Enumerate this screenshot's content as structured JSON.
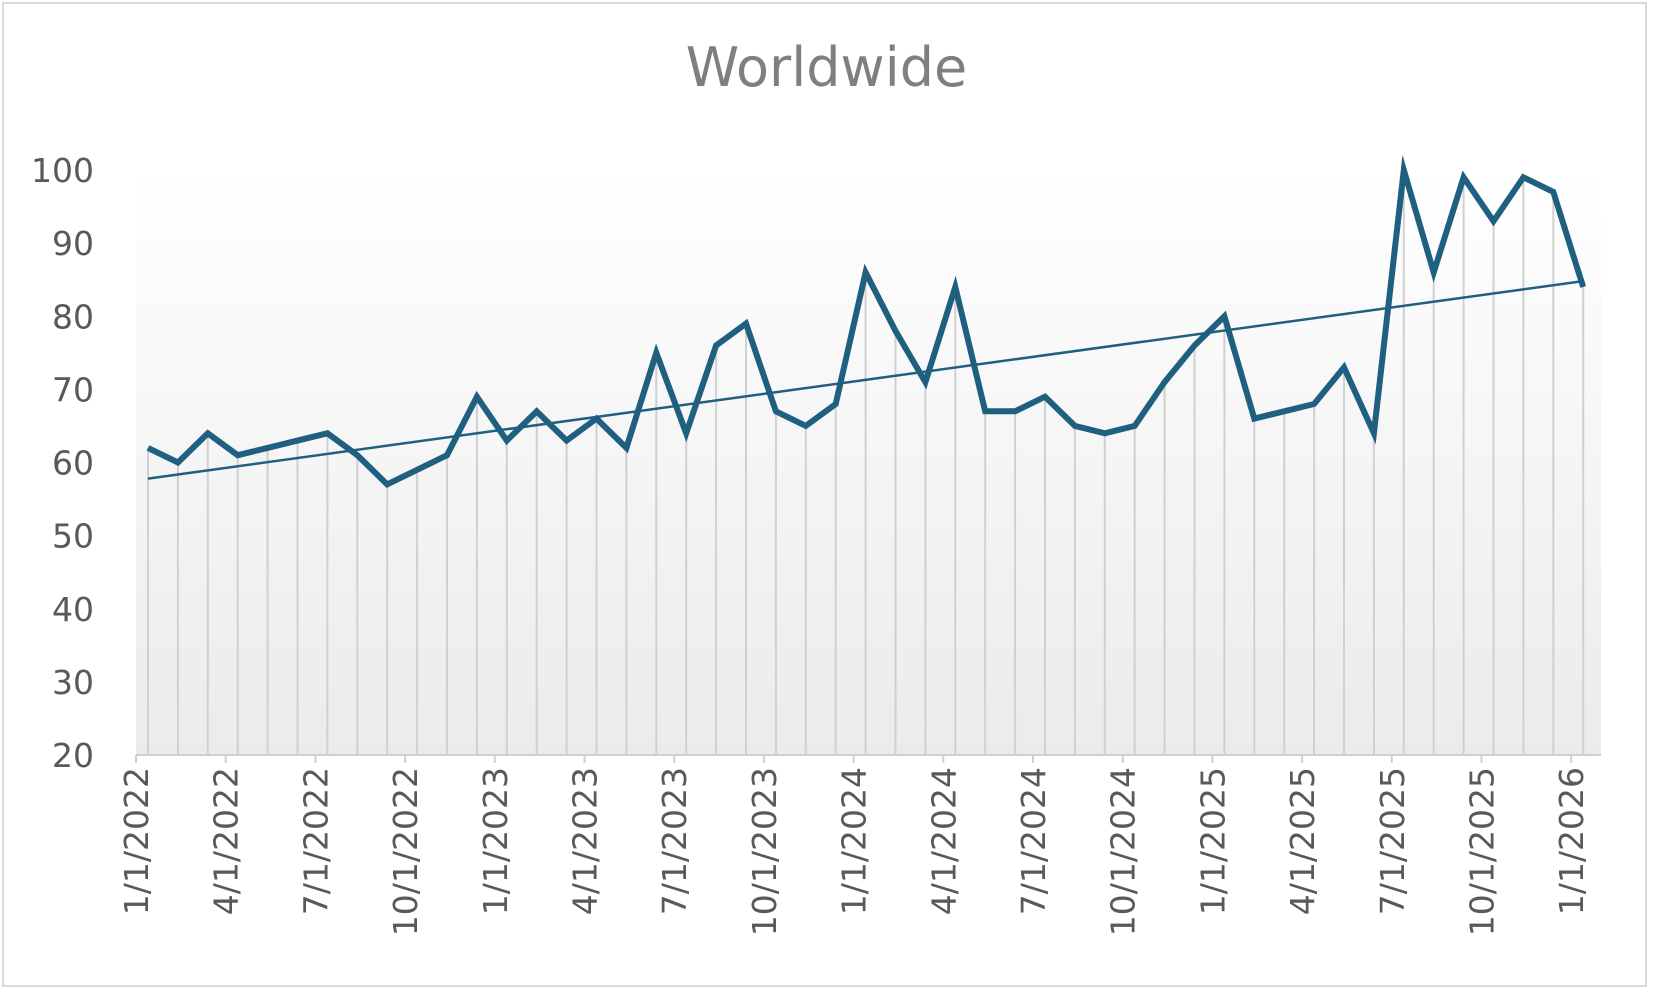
{
  "chart_data": {
    "type": "line",
    "title": "Worldwide",
    "xlabel": "",
    "ylabel": "",
    "ylim": [
      20,
      100
    ],
    "yticks": [
      20,
      30,
      40,
      50,
      60,
      70,
      80,
      90,
      100
    ],
    "x_tick_labels": [
      "1/1/2022",
      "4/1/2022",
      "7/1/2022",
      "10/1/2022",
      "1/1/2023",
      "4/1/2023",
      "7/1/2023",
      "10/1/2023",
      "1/1/2024",
      "4/1/2024",
      "7/1/2024",
      "10/1/2024",
      "1/1/2025",
      "4/1/2025",
      "7/1/2025",
      "10/1/2025",
      "1/1/2026"
    ],
    "x": [
      "2022-01-01",
      "2022-02-01",
      "2022-03-01",
      "2022-04-01",
      "2022-05-01",
      "2022-06-01",
      "2022-07-01",
      "2022-08-01",
      "2022-09-01",
      "2022-10-01",
      "2022-11-01",
      "2022-12-01",
      "2023-01-01",
      "2023-02-01",
      "2023-03-01",
      "2023-04-01",
      "2023-05-01",
      "2023-06-01",
      "2023-07-01",
      "2023-08-01",
      "2023-09-01",
      "2023-10-01",
      "2023-11-01",
      "2023-12-01",
      "2024-01-01",
      "2024-02-01",
      "2024-03-01",
      "2024-04-01",
      "2024-05-01",
      "2024-06-01",
      "2024-07-01",
      "2024-08-01",
      "2024-09-01",
      "2024-10-01",
      "2024-11-01",
      "2024-12-01",
      "2025-01-01",
      "2025-02-01",
      "2025-03-01",
      "2025-04-01",
      "2025-05-01",
      "2025-06-01",
      "2025-07-01",
      "2025-08-01",
      "2025-09-01",
      "2025-10-01",
      "2025-11-01",
      "2025-12-01",
      "2026-01-01"
    ],
    "series": [
      {
        "name": "",
        "color": "#1f5f7f",
        "values": [
          62,
          60,
          64,
          61,
          62,
          63,
          64,
          61,
          57,
          59,
          61,
          69,
          63,
          67,
          63,
          66,
          62,
          75,
          64,
          76,
          79,
          67,
          65,
          68,
          86,
          78,
          71,
          84,
          67,
          67,
          69,
          65,
          64,
          65,
          71,
          76,
          80,
          66,
          67,
          68,
          73,
          64,
          100,
          86,
          99,
          93,
          99,
          97,
          84
        ]
      }
    ],
    "trendline": {
      "type": "linear",
      "color": "#1f5f7f",
      "start": 57.8,
      "end": 84.8
    },
    "fill": "vertical gray drop lines from each point to the axis over a white-to-light-gray gradient",
    "grid": false,
    "legend": "none"
  }
}
